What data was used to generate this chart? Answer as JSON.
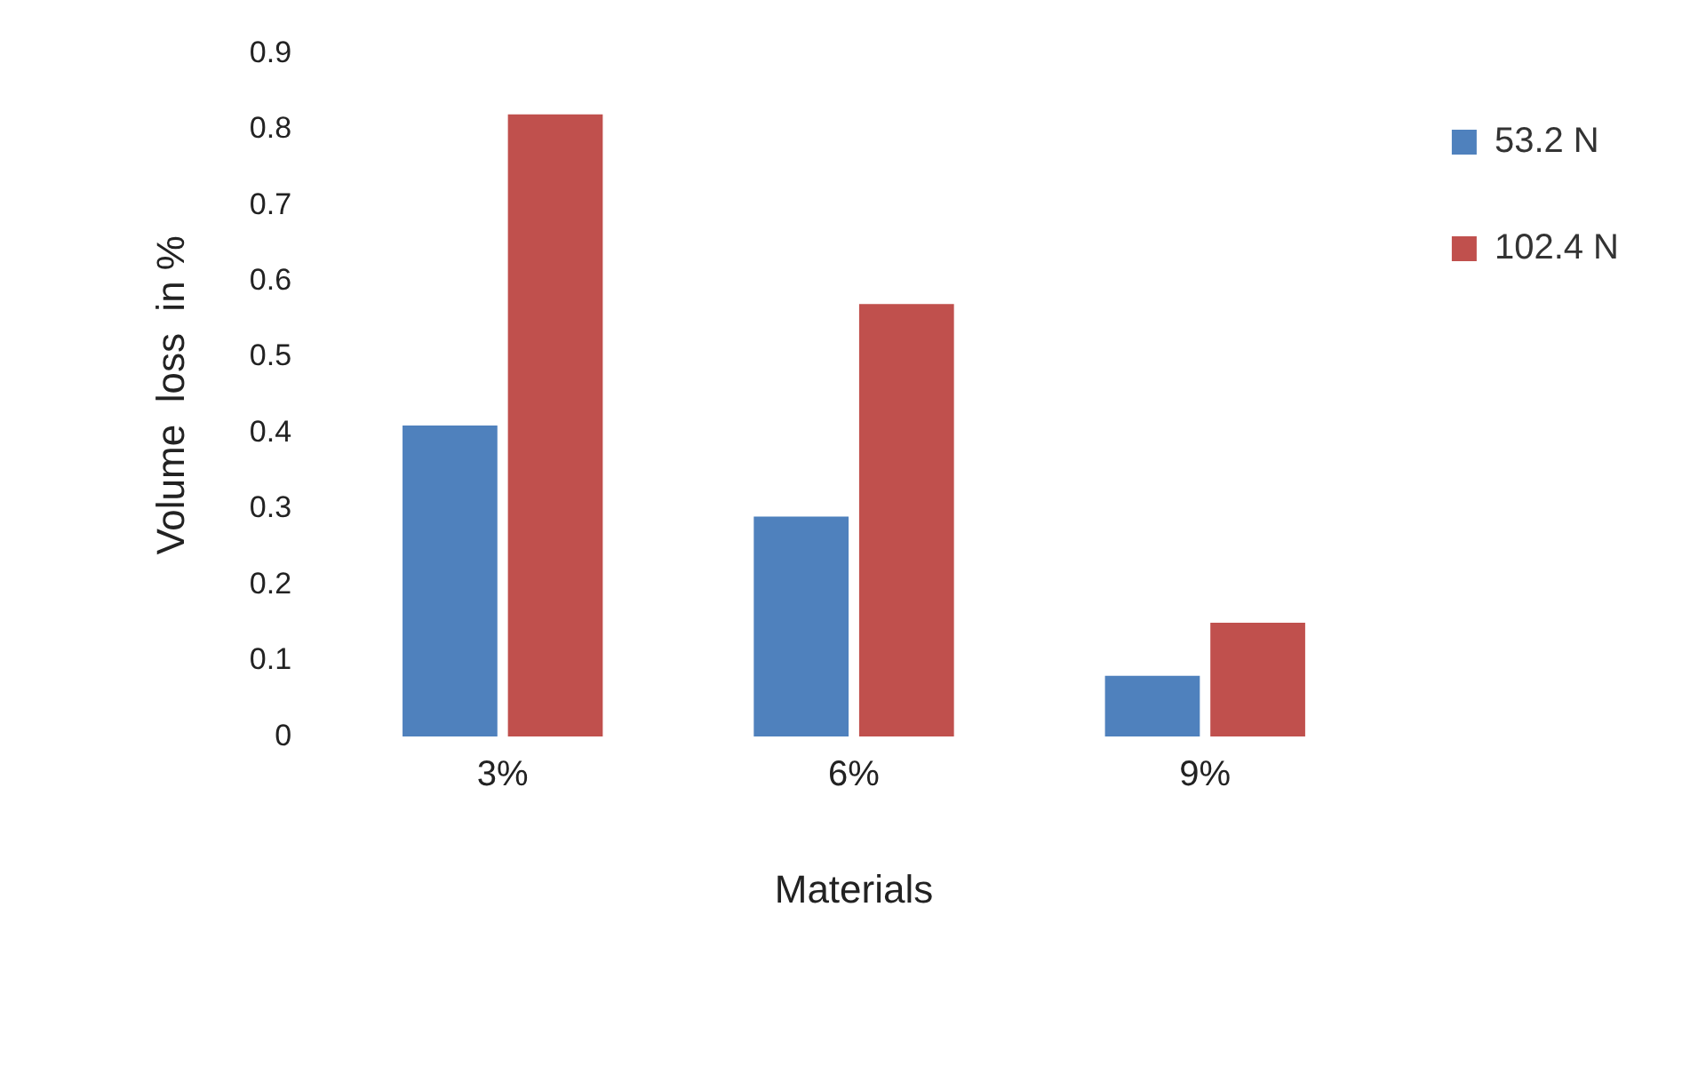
{
  "chart_data": {
    "type": "bar",
    "xlabel": "Materials",
    "ylabel": "Volume  loss  in %",
    "categories": [
      "3%",
      "6%",
      "9%"
    ],
    "series": [
      {
        "name": "53.2 N",
        "color": "#4f81bd",
        "values": [
          0.41,
          0.29,
          0.08
        ]
      },
      {
        "name": "102.4 N",
        "color": "#c0504d",
        "values": [
          0.82,
          0.57,
          0.15
        ]
      }
    ],
    "ylim": [
      0,
      0.9
    ],
    "yticks": [
      0,
      0.1,
      0.2,
      0.3,
      0.4,
      0.5,
      0.6,
      0.7,
      0.8,
      0.9
    ],
    "grid": false,
    "legend": "top right"
  }
}
